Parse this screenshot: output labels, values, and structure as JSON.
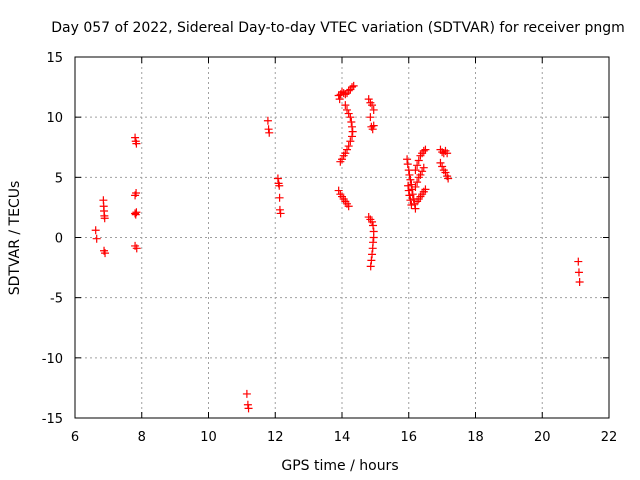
{
  "chart_data": {
    "type": "scatter",
    "title": "Day 057 of 2022, Sidereal Day-to-day VTEC variation (SDTVAR) for receiver pngm",
    "xlabel": "GPS time / hours",
    "ylabel": "SDTVAR / TECUs",
    "xlim": [
      6,
      22
    ],
    "ylim": [
      -15,
      15
    ],
    "xticks": [
      6,
      8,
      10,
      12,
      14,
      16,
      18,
      20,
      22
    ],
    "yticks": [
      -15,
      -10,
      -5,
      0,
      5,
      10,
      15
    ],
    "grid": true,
    "marker": "plus",
    "color": "#ff0000",
    "series": [
      {
        "name": "SDTVAR",
        "points": [
          [
            6.62,
            0.6
          ],
          [
            6.65,
            -0.1
          ],
          [
            6.85,
            3.1
          ],
          [
            6.86,
            2.6
          ],
          [
            6.87,
            2.2
          ],
          [
            6.88,
            1.8
          ],
          [
            6.89,
            1.6
          ],
          [
            6.87,
            -1.1
          ],
          [
            6.9,
            -1.3
          ],
          [
            7.8,
            8.3
          ],
          [
            7.82,
            8.0
          ],
          [
            7.84,
            7.8
          ],
          [
            7.8,
            3.5
          ],
          [
            7.83,
            3.7
          ],
          [
            7.8,
            2.0
          ],
          [
            7.82,
            1.9
          ],
          [
            7.84,
            2.1
          ],
          [
            7.8,
            -0.7
          ],
          [
            7.85,
            -0.9
          ],
          [
            11.15,
            -13.0
          ],
          [
            11.18,
            -13.9
          ],
          [
            11.2,
            -14.2
          ],
          [
            11.78,
            9.7
          ],
          [
            11.8,
            9.0
          ],
          [
            11.82,
            8.7
          ],
          [
            12.08,
            4.9
          ],
          [
            12.1,
            4.5
          ],
          [
            12.12,
            4.3
          ],
          [
            12.13,
            3.3
          ],
          [
            12.14,
            2.3
          ],
          [
            12.16,
            2.0
          ],
          [
            13.9,
            11.8
          ],
          [
            13.93,
            11.5
          ],
          [
            13.96,
            11.9
          ],
          [
            14.0,
            12.1
          ],
          [
            14.05,
            12.0
          ],
          [
            14.1,
            11.9
          ],
          [
            14.15,
            12.0
          ],
          [
            14.2,
            12.2
          ],
          [
            14.25,
            12.3
          ],
          [
            14.3,
            12.5
          ],
          [
            14.35,
            12.6
          ],
          [
            14.1,
            11.0
          ],
          [
            14.15,
            10.6
          ],
          [
            14.2,
            10.3
          ],
          [
            14.25,
            10.0
          ],
          [
            14.28,
            9.6
          ],
          [
            14.3,
            9.2
          ],
          [
            14.32,
            8.8
          ],
          [
            14.3,
            8.4
          ],
          [
            14.25,
            8.0
          ],
          [
            14.2,
            7.6
          ],
          [
            14.15,
            7.3
          ],
          [
            14.1,
            7.0
          ],
          [
            14.05,
            6.8
          ],
          [
            14.0,
            6.5
          ],
          [
            13.95,
            6.3
          ],
          [
            13.9,
            3.9
          ],
          [
            13.95,
            3.6
          ],
          [
            14.0,
            3.4
          ],
          [
            14.05,
            3.2
          ],
          [
            14.1,
            3.0
          ],
          [
            14.15,
            2.8
          ],
          [
            14.2,
            2.6
          ],
          [
            14.8,
            11.5
          ],
          [
            14.85,
            11.2
          ],
          [
            14.9,
            11.0
          ],
          [
            14.95,
            10.6
          ],
          [
            14.85,
            10.0
          ],
          [
            14.88,
            9.2
          ],
          [
            14.92,
            9.0
          ],
          [
            14.95,
            9.3
          ],
          [
            14.8,
            1.7
          ],
          [
            14.85,
            1.5
          ],
          [
            14.9,
            1.3
          ],
          [
            14.93,
            1.0
          ],
          [
            14.95,
            0.5
          ],
          [
            14.95,
            0.0
          ],
          [
            14.93,
            -0.4
          ],
          [
            14.92,
            -0.9
          ],
          [
            14.9,
            -1.4
          ],
          [
            14.88,
            -1.9
          ],
          [
            14.86,
            -2.4
          ],
          [
            15.95,
            6.5
          ],
          [
            15.97,
            6.1
          ],
          [
            16.0,
            5.6
          ],
          [
            16.02,
            5.2
          ],
          [
            16.05,
            4.8
          ],
          [
            16.08,
            4.4
          ],
          [
            16.1,
            4.0
          ],
          [
            16.12,
            3.6
          ],
          [
            16.15,
            3.2
          ],
          [
            16.18,
            2.8
          ],
          [
            16.2,
            2.4
          ],
          [
            15.98,
            4.3
          ],
          [
            16.0,
            3.9
          ],
          [
            16.02,
            3.5
          ],
          [
            16.05,
            3.1
          ],
          [
            16.08,
            2.7
          ],
          [
            16.2,
            5.6
          ],
          [
            16.25,
            6.0
          ],
          [
            16.3,
            6.4
          ],
          [
            16.35,
            6.8
          ],
          [
            16.4,
            7.0
          ],
          [
            16.45,
            7.2
          ],
          [
            16.5,
            7.3
          ],
          [
            16.2,
            4.2
          ],
          [
            16.25,
            4.6
          ],
          [
            16.3,
            5.0
          ],
          [
            16.35,
            5.2
          ],
          [
            16.4,
            5.5
          ],
          [
            16.45,
            5.8
          ],
          [
            16.25,
            3.0
          ],
          [
            16.3,
            3.2
          ],
          [
            16.35,
            3.4
          ],
          [
            16.4,
            3.6
          ],
          [
            16.45,
            3.8
          ],
          [
            16.5,
            4.0
          ],
          [
            16.95,
            7.3
          ],
          [
            17.0,
            7.1
          ],
          [
            17.05,
            7.0
          ],
          [
            17.1,
            7.2
          ],
          [
            17.15,
            7.0
          ],
          [
            16.95,
            6.2
          ],
          [
            17.0,
            5.9
          ],
          [
            17.05,
            5.6
          ],
          [
            17.1,
            5.4
          ],
          [
            17.15,
            5.1
          ],
          [
            17.18,
            4.9
          ],
          [
            21.08,
            -2.0
          ],
          [
            21.1,
            -2.9
          ],
          [
            21.12,
            -3.7
          ]
        ]
      }
    ]
  }
}
